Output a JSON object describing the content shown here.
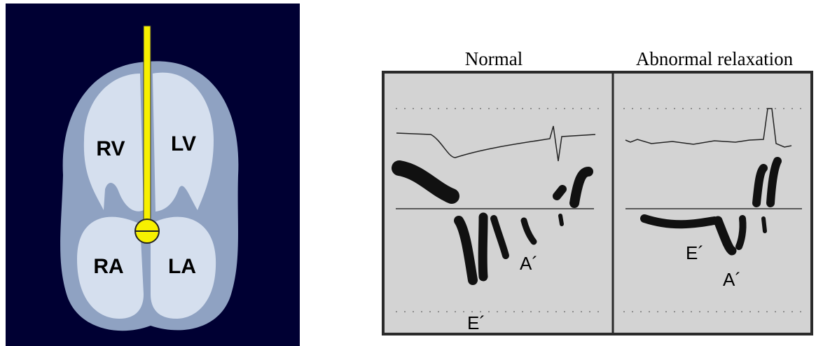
{
  "heart": {
    "labels": [
      "RV",
      "LV",
      "RA",
      "LA"
    ]
  },
  "doppler": {
    "panels": [
      {
        "title": "Normal",
        "labels": [
          "E´",
          "A´"
        ]
      },
      {
        "title": "Abnormal relaxation",
        "labels": [
          "E´",
          "A´"
        ]
      }
    ]
  }
}
